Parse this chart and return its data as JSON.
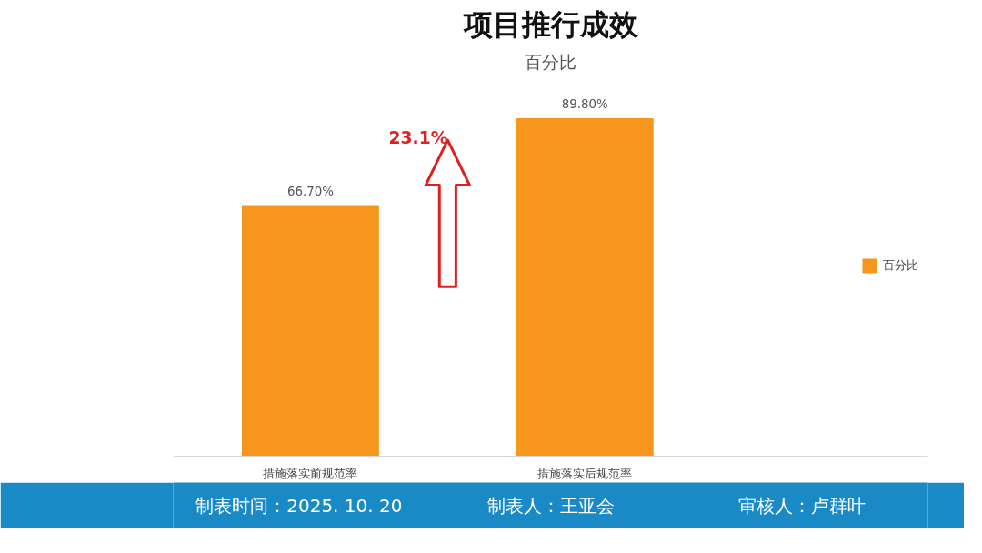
{
  "chart_data": {
    "type": "bar",
    "title": "项目推行成效",
    "subtitle": "百分比",
    "categories": [
      "措施落实前规范率",
      "措施落实后规范率"
    ],
    "series": [
      {
        "name": "百分比",
        "color": "#f7961c",
        "values": [
          66.7,
          89.8
        ],
        "value_labels": [
          "66.70%",
          "89.80%"
        ]
      }
    ],
    "tick_labels": "x",
    "legend": "right",
    "annotations": [
      "23.1%",
      "制表时间：2025. 10. 20",
      "制表人：王亚会",
      "审核人：卢群叶"
    ]
  }
}
